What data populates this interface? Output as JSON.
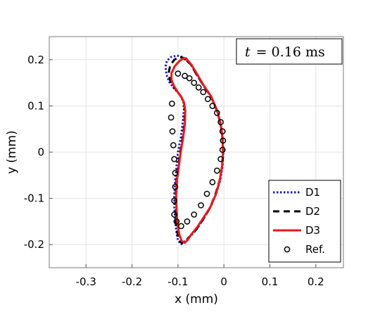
{
  "chart_data": {
    "type": "line",
    "annotation": {
      "var": "t",
      "value": "= 0.16 ms"
    },
    "xlabel": "x (mm)",
    "ylabel": "y (mm)",
    "xlim": [
      -0.38,
      0.26
    ],
    "ylim": [
      -0.25,
      0.25
    ],
    "xticks": [
      -0.3,
      -0.2,
      -0.1,
      0,
      0.1,
      0.2
    ],
    "yticks": [
      -0.2,
      -0.1,
      0,
      0.1,
      0.2
    ],
    "xtick_labels": [
      "-0.3",
      "-0.2",
      "-0.1",
      "0",
      "0.1",
      "0.2"
    ],
    "ytick_labels": [
      "-0.2",
      "-0.1",
      "0",
      "0.1",
      "0.2"
    ],
    "grid": true,
    "legend_position": "bottom-right",
    "series": [
      {
        "name": "D1",
        "style": "dotted",
        "color": "#1f1fb4",
        "x": [
          -0.081,
          -0.072,
          -0.06,
          -0.045,
          -0.028,
          -0.015,
          -0.007,
          -0.003,
          -0.001,
          -0.003,
          -0.008,
          -0.017,
          -0.03,
          -0.045,
          -0.06,
          -0.075,
          -0.085,
          -0.093,
          -0.1,
          -0.103,
          -0.106,
          -0.108,
          -0.108,
          -0.106,
          -0.103,
          -0.1,
          -0.094,
          -0.09,
          -0.087,
          -0.088,
          -0.093,
          -0.101,
          -0.11,
          -0.119,
          -0.125,
          -0.127,
          -0.124,
          -0.115,
          -0.102,
          -0.09,
          -0.081
        ],
        "y": [
          0.199,
          0.19,
          0.169,
          0.145,
          0.12,
          0.09,
          0.06,
          0.03,
          0.0,
          -0.03,
          -0.06,
          -0.09,
          -0.12,
          -0.145,
          -0.168,
          -0.184,
          -0.193,
          -0.199,
          -0.191,
          -0.175,
          -0.15,
          -0.12,
          -0.09,
          -0.06,
          -0.03,
          0.0,
          0.03,
          0.06,
          0.09,
          0.108,
          0.12,
          0.13,
          0.14,
          0.152,
          0.168,
          0.185,
          0.198,
          0.206,
          0.209,
          0.206,
          0.199
        ]
      },
      {
        "name": "D2",
        "style": "dashed",
        "color": "#000000",
        "x": [
          -0.08,
          -0.072,
          -0.06,
          -0.045,
          -0.028,
          -0.015,
          -0.007,
          -0.003,
          -0.002,
          -0.004,
          -0.009,
          -0.018,
          -0.03,
          -0.045,
          -0.06,
          -0.075,
          -0.084,
          -0.092,
          -0.098,
          -0.101,
          -0.104,
          -0.105,
          -0.105,
          -0.103,
          -0.099,
          -0.095,
          -0.09,
          -0.086,
          -0.085,
          -0.087,
          -0.093,
          -0.101,
          -0.11,
          -0.117,
          -0.12,
          -0.117,
          -0.108,
          -0.097,
          -0.088,
          -0.08
        ],
        "y": [
          0.197,
          0.19,
          0.169,
          0.145,
          0.12,
          0.09,
          0.06,
          0.03,
          0.0,
          -0.03,
          -0.06,
          -0.09,
          -0.12,
          -0.145,
          -0.167,
          -0.183,
          -0.192,
          -0.197,
          -0.19,
          -0.175,
          -0.15,
          -0.12,
          -0.09,
          -0.06,
          -0.03,
          0.0,
          0.03,
          0.06,
          0.09,
          0.108,
          0.12,
          0.131,
          0.142,
          0.155,
          0.172,
          0.188,
          0.2,
          0.206,
          0.204,
          0.197
        ]
      },
      {
        "name": "D3",
        "style": "solid",
        "color": "#e8191c",
        "x": [
          -0.079,
          -0.071,
          -0.059,
          -0.045,
          -0.028,
          -0.015,
          -0.007,
          -0.003,
          -0.002,
          -0.004,
          -0.009,
          -0.017,
          -0.029,
          -0.044,
          -0.058,
          -0.071,
          -0.079,
          -0.085,
          -0.092,
          -0.097,
          -0.101,
          -0.103,
          -0.104,
          -0.102,
          -0.098,
          -0.094,
          -0.089,
          -0.085,
          -0.084,
          -0.087,
          -0.093,
          -0.101,
          -0.108,
          -0.114,
          -0.114,
          -0.107,
          -0.097,
          -0.088,
          -0.082,
          -0.079
        ],
        "y": [
          0.199,
          0.19,
          0.17,
          0.146,
          0.121,
          0.091,
          0.061,
          0.031,
          0.0,
          -0.03,
          -0.06,
          -0.09,
          -0.118,
          -0.141,
          -0.162,
          -0.178,
          -0.19,
          -0.196,
          -0.192,
          -0.178,
          -0.155,
          -0.125,
          -0.093,
          -0.06,
          -0.03,
          0.0,
          0.03,
          0.06,
          0.09,
          0.108,
          0.12,
          0.131,
          0.142,
          0.156,
          0.171,
          0.186,
          0.197,
          0.203,
          0.203,
          0.199
        ]
      },
      {
        "name": "Ref.",
        "style": "circles",
        "color": "#000000",
        "x": [
          -0.1,
          -0.085,
          -0.075,
          -0.065,
          -0.055,
          -0.045,
          -0.035,
          -0.025,
          -0.015,
          -0.007,
          -0.003,
          -0.002,
          -0.003,
          -0.007,
          -0.015,
          -0.025,
          -0.037,
          -0.05,
          -0.065,
          -0.08,
          -0.093,
          -0.103,
          -0.108,
          -0.108,
          -0.106,
          -0.106,
          -0.108,
          -0.11,
          -0.112,
          -0.115,
          -0.113
        ],
        "y": [
          0.17,
          0.165,
          0.16,
          0.15,
          0.14,
          0.13,
          0.115,
          0.1,
          0.085,
          0.065,
          0.045,
          0.025,
          0.005,
          -0.015,
          -0.04,
          -0.065,
          -0.09,
          -0.115,
          -0.135,
          -0.15,
          -0.16,
          -0.15,
          -0.135,
          -0.105,
          -0.075,
          -0.045,
          -0.015,
          0.015,
          0.045,
          0.075,
          0.105
        ]
      }
    ]
  }
}
